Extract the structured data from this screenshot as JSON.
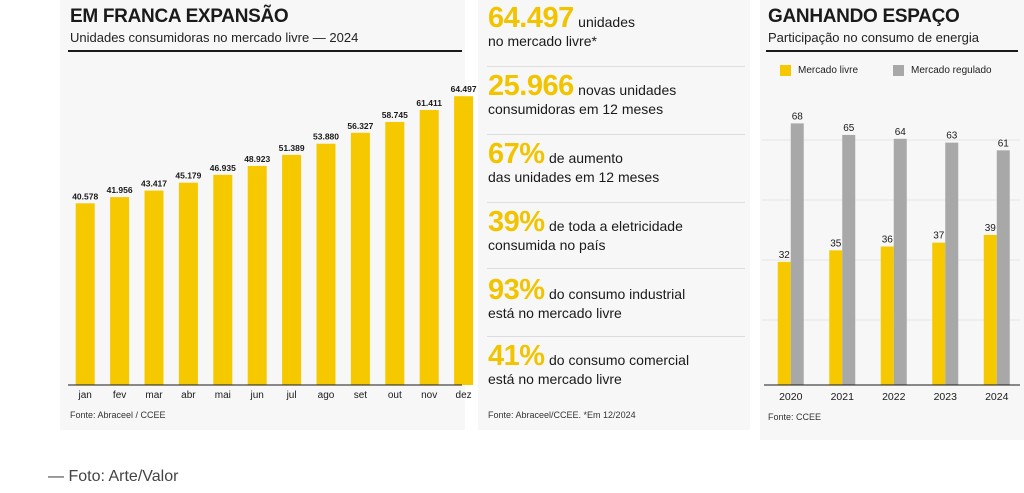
{
  "left": {
    "title": "EM FRANCA EXPANSÃO",
    "subtitle": "Unidades consumidoras no mercado livre — 2024",
    "source": "Fonte: Abraceel / CCEE"
  },
  "middle": {
    "stats": [
      {
        "big": "64.497",
        "text1": "unidades",
        "text2": "no mercado livre*"
      },
      {
        "big": "25.966",
        "text1": "novas unidades",
        "text2": "consumidoras em 12 meses"
      },
      {
        "big": "67%",
        "text1": "de aumento",
        "text2": "das unidades em 12 meses"
      },
      {
        "big": "39%",
        "text1": "de toda a eletricidade",
        "text2": "consumida no país"
      },
      {
        "big": "93%",
        "text1": "do consumo industrial",
        "text2": "está no mercado livre"
      },
      {
        "big": "41%",
        "text1": "do consumo comercial",
        "text2": "está no mercado livre"
      }
    ],
    "source": "Fonte: Abraceel/CCEE. *Em 12/2024"
  },
  "right": {
    "title": "GANHANDO ESPAÇO",
    "subtitle": "Participação no consumo de energia",
    "source": "Fonte: CCEE",
    "legend": [
      "Mercado livre",
      "Mercado regulado"
    ]
  },
  "caption": "— Foto: Arte/Valor",
  "colors": {
    "yellow": "#f6c800",
    "gray": "#a8a8a8",
    "accent_text": "#f2c400"
  },
  "chart_data": [
    {
      "type": "bar",
      "title": "EM FRANCA EXPANSÃO",
      "subtitle": "Unidades consumidoras no mercado livre — 2024",
      "categories": [
        "jan",
        "fev",
        "mar",
        "abr",
        "mai",
        "jun",
        "jul",
        "ago",
        "set",
        "out",
        "nov",
        "dez"
      ],
      "values": [
        40578,
        41956,
        43417,
        45179,
        46935,
        48923,
        51389,
        53880,
        56327,
        58745,
        61411,
        64497
      ],
      "labels": [
        "40.578",
        "41.956",
        "43.417",
        "45.179",
        "46.935",
        "48.923",
        "51.389",
        "53.880",
        "56.327",
        "58.745",
        "61.411",
        "64.497"
      ],
      "ylim": [
        0,
        67000
      ],
      "grid": false
    },
    {
      "type": "bar",
      "title": "GANHANDO ESPAÇO",
      "subtitle": "Participação no consumo de energia",
      "categories": [
        "2020",
        "2021",
        "2022",
        "2023",
        "2024"
      ],
      "series": [
        {
          "name": "Mercado livre",
          "values": [
            32,
            35,
            36,
            37,
            39
          ]
        },
        {
          "name": "Mercado regulado",
          "values": [
            68,
            65,
            64,
            63,
            61
          ]
        }
      ],
      "ylim": [
        0,
        72
      ],
      "grid": true,
      "legend_position": "top-left"
    }
  ]
}
